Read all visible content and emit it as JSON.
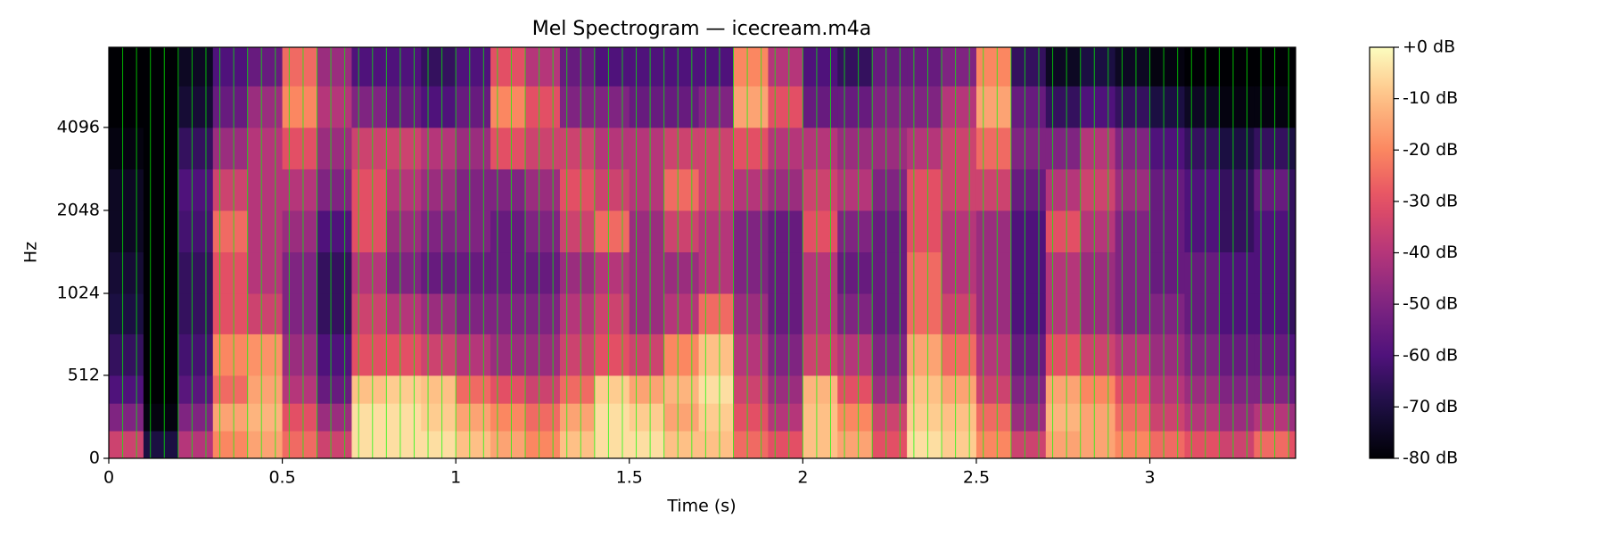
{
  "chart_data": {
    "type": "spectrogram",
    "title": "Mel Spectrogram — icecream.m4a",
    "xlabel": "Time (s)",
    "ylabel": "Hz",
    "xlim": [
      0,
      3.42
    ],
    "xticks": [
      0,
      0.5,
      1,
      1.5,
      2,
      2.5,
      3
    ],
    "ylim": [
      0,
      8000
    ],
    "yscale": "mel",
    "yticks": [
      0,
      512,
      1024,
      2048,
      4096
    ],
    "colormap": "magma",
    "clim": [
      -80,
      0
    ],
    "cticks": [
      {
        "value": 0,
        "label": "+0 dB"
      },
      {
        "value": -10,
        "label": "-10 dB"
      },
      {
        "value": -20,
        "label": "-20 dB"
      },
      {
        "value": -30,
        "label": "-30 dB"
      },
      {
        "value": -40,
        "label": "-40 dB"
      },
      {
        "value": -50,
        "label": "-50 dB"
      },
      {
        "value": -60,
        "label": "-60 dB"
      },
      {
        "value": -70,
        "label": "-70 dB"
      },
      {
        "value": -80,
        "label": "-80 dB"
      }
    ],
    "xbins": [
      0,
      0.1,
      0.2,
      0.3,
      0.4,
      0.5,
      0.6,
      0.7,
      0.8,
      0.9,
      1.0,
      1.1,
      1.2,
      1.3,
      1.4,
      1.5,
      1.6,
      1.7,
      1.8,
      1.9,
      2.0,
      2.1,
      2.2,
      2.3,
      2.4,
      2.5,
      2.6,
      2.7,
      2.8,
      2.9,
      3.0,
      3.1,
      3.2,
      3.3,
      3.4,
      3.42
    ],
    "ybins": [
      0,
      170,
      340,
      512,
      768,
      1024,
      1448,
      2048,
      2896,
      4096,
      5792,
      8000
    ],
    "values": [
      [
        -35,
        -50,
        -60,
        -65,
        -70,
        -72,
        -75,
        -75,
        -78,
        -80,
        -80
      ],
      [
        -70,
        -78,
        -80,
        -80,
        -80,
        -80,
        -80,
        -80,
        -80,
        -80,
        -80
      ],
      [
        -40,
        -50,
        -58,
        -62,
        -65,
        -65,
        -62,
        -60,
        -65,
        -72,
        -75
      ],
      [
        -20,
        -15,
        -25,
        -20,
        -30,
        -30,
        -25,
        -35,
        -45,
        -55,
        -60
      ],
      [
        -15,
        -12,
        -15,
        -18,
        -35,
        -40,
        -40,
        -40,
        -40,
        -45,
        -55
      ],
      [
        -25,
        -30,
        -40,
        -45,
        -50,
        -50,
        -45,
        -40,
        -30,
        -20,
        -25
      ],
      [
        -35,
        -45,
        -55,
        -60,
        -65,
        -65,
        -60,
        -50,
        -45,
        -40,
        -45
      ],
      [
        -5,
        -5,
        -10,
        -30,
        -35,
        -40,
        -30,
        -30,
        -35,
        -50,
        -60
      ],
      [
        -5,
        -5,
        -8,
        -30,
        -40,
        -50,
        -45,
        -40,
        -35,
        -55,
        -60
      ],
      [
        -5,
        -8,
        -10,
        -35,
        -45,
        -55,
        -50,
        -45,
        -40,
        -60,
        -65
      ],
      [
        -10,
        -15,
        -25,
        -40,
        -50,
        -55,
        -50,
        -50,
        -45,
        -55,
        -60
      ],
      [
        -15,
        -20,
        -30,
        -45,
        -50,
        -55,
        -55,
        -50,
        -30,
        -20,
        -30
      ],
      [
        -20,
        -25,
        -35,
        -45,
        -50,
        -55,
        -50,
        -45,
        -35,
        -30,
        -40
      ],
      [
        -10,
        -15,
        -25,
        -35,
        -40,
        -45,
        -35,
        -30,
        -35,
        -50,
        -55
      ],
      [
        -5,
        -5,
        -8,
        -30,
        -35,
        -40,
        -25,
        -35,
        -40,
        -50,
        -60
      ],
      [
        -5,
        -8,
        -15,
        -35,
        -45,
        -45,
        -45,
        -40,
        -40,
        -55,
        -60
      ],
      [
        -10,
        -15,
        -12,
        -20,
        -40,
        -45,
        -35,
        -25,
        -35,
        -55,
        -60
      ],
      [
        -10,
        -8,
        -5,
        -10,
        -25,
        -40,
        -40,
        -35,
        -35,
        -50,
        -60
      ],
      [
        -25,
        -30,
        -35,
        -40,
        -45,
        -50,
        -50,
        -40,
        -30,
        -15,
        -20
      ],
      [
        -30,
        -40,
        -45,
        -50,
        -55,
        -55,
        -55,
        -45,
        -40,
        -30,
        -40
      ],
      [
        -10,
        -10,
        -12,
        -35,
        -40,
        -40,
        -30,
        -35,
        -40,
        -55,
        -60
      ],
      [
        -15,
        -20,
        -30,
        -40,
        -50,
        -55,
        -50,
        -40,
        -45,
        -55,
        -65
      ],
      [
        -30,
        -35,
        -45,
        -50,
        -55,
        -55,
        -55,
        -50,
        -45,
        -50,
        -55
      ],
      [
        -5,
        -8,
        -10,
        -15,
        -25,
        -25,
        -30,
        -30,
        -40,
        -50,
        -55
      ],
      [
        -8,
        -10,
        -15,
        -25,
        -35,
        -40,
        -40,
        -35,
        -35,
        -40,
        -50
      ],
      [
        -20,
        -25,
        -35,
        -40,
        -45,
        -45,
        -45,
        -35,
        -25,
        -15,
        -20
      ],
      [
        -35,
        -45,
        -50,
        -55,
        -60,
        -60,
        -60,
        -55,
        -50,
        -55,
        -65
      ],
      [
        -15,
        -12,
        -15,
        -30,
        -40,
        -40,
        -30,
        -40,
        -50,
        -65,
        -75
      ],
      [
        -15,
        -15,
        -20,
        -35,
        -45,
        -45,
        -40,
        -35,
        -40,
        -60,
        -70
      ],
      [
        -20,
        -25,
        -30,
        -40,
        -50,
        -50,
        -50,
        -45,
        -50,
        -65,
        -75
      ],
      [
        -25,
        -35,
        -40,
        -45,
        -50,
        -55,
        -55,
        -55,
        -60,
        -70,
        -78
      ],
      [
        -30,
        -40,
        -45,
        -50,
        -55,
        -55,
        -60,
        -60,
        -65,
        -75,
        -80
      ],
      [
        -35,
        -45,
        -50,
        -55,
        -60,
        -60,
        -65,
        -65,
        -70,
        -78,
        -80
      ],
      [
        -25,
        -40,
        -50,
        -55,
        -60,
        -60,
        -60,
        -55,
        -65,
        -78,
        -80
      ],
      [
        -30,
        -45,
        -55,
        -60,
        -65,
        -65,
        -65,
        -65,
        -70,
        -80,
        -80
      ]
    ],
    "vlines": [
      0,
      0.04,
      0.08,
      0.12,
      0.16,
      0.2,
      0.24,
      0.28,
      0.32,
      0.36,
      0.4,
      0.44,
      0.48,
      0.52,
      0.56,
      0.6,
      0.64,
      0.68,
      0.72,
      0.76,
      0.8,
      0.84,
      0.88,
      0.92,
      0.96,
      1.0,
      1.04,
      1.08,
      1.12,
      1.16,
      1.2,
      1.24,
      1.28,
      1.32,
      1.36,
      1.4,
      1.44,
      1.48,
      1.52,
      1.56,
      1.6,
      1.64,
      1.68,
      1.72,
      1.76,
      1.8,
      1.84,
      1.88,
      1.92,
      1.96,
      2.0,
      2.04,
      2.08,
      2.12,
      2.16,
      2.2,
      2.24,
      2.28,
      2.32,
      2.36,
      2.4,
      2.44,
      2.48,
      2.52,
      2.56,
      2.6,
      2.64,
      2.68,
      2.72,
      2.76,
      2.8,
      2.84,
      2.88,
      2.92,
      2.96,
      3.0,
      3.04,
      3.08,
      3.12,
      3.16,
      3.2,
      3.24,
      3.28,
      3.32,
      3.36,
      3.4
    ],
    "vline_color": "#00ff00"
  }
}
